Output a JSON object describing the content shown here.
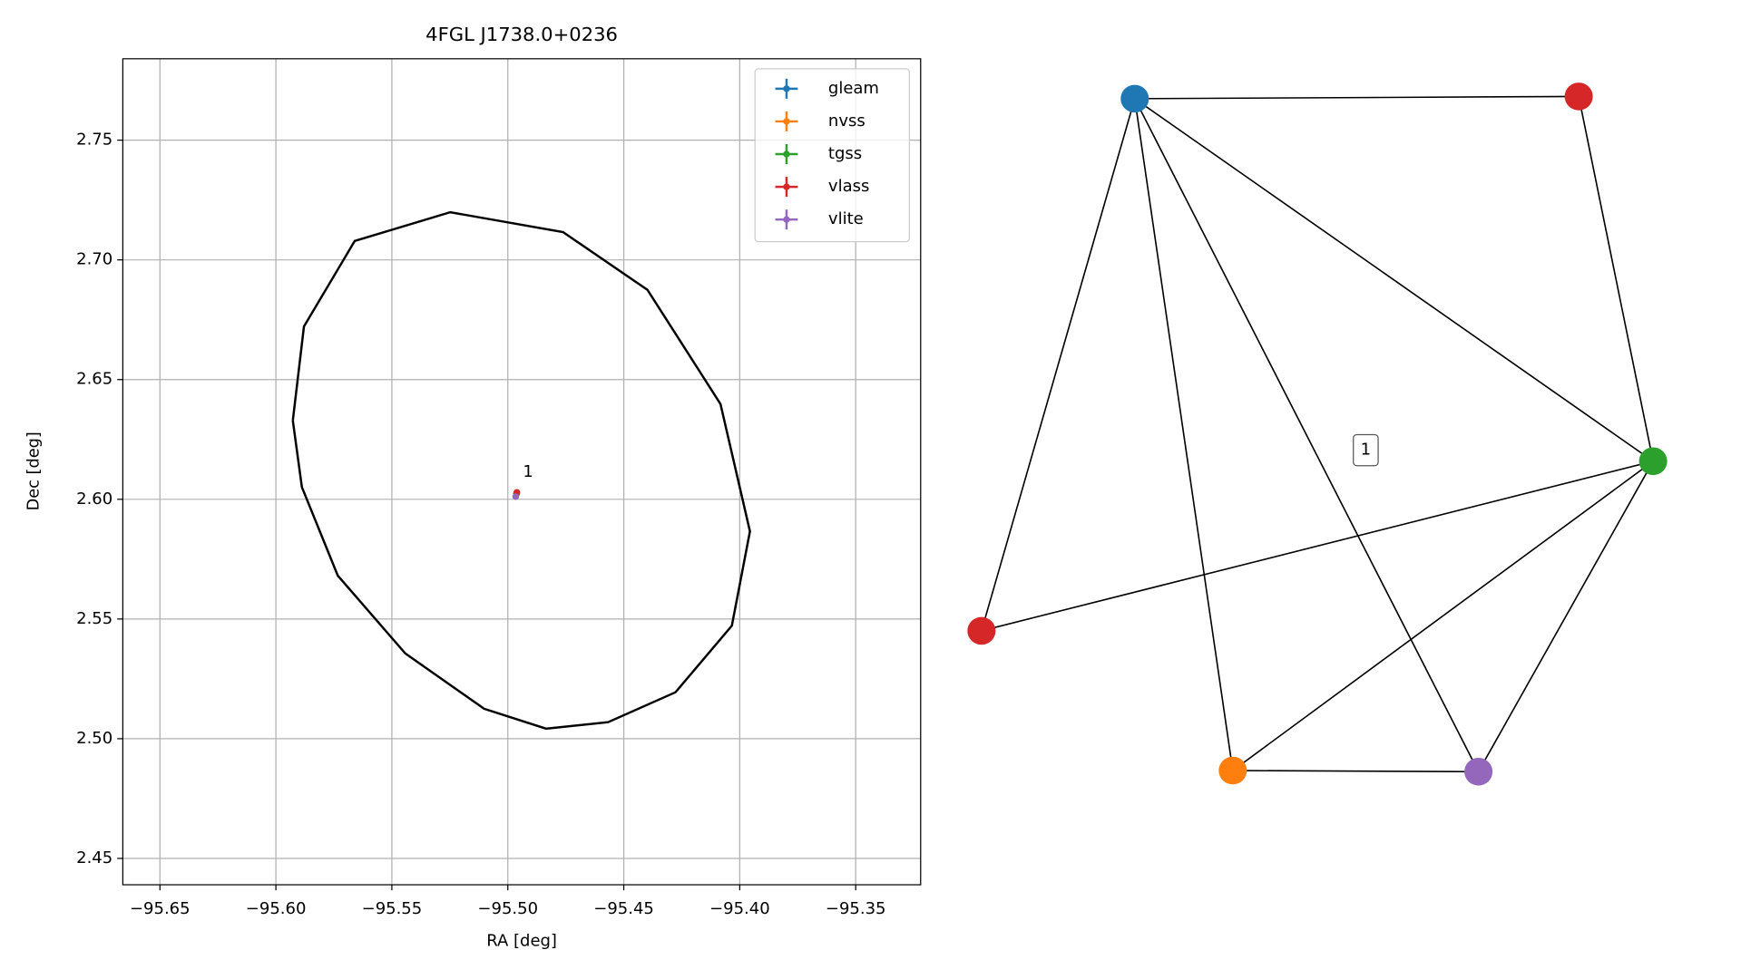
{
  "chart_data": [
    {
      "type": "scatter",
      "title": "4FGL J1738.0+0236",
      "xlabel": "RA [deg]",
      "ylabel": "Dec [deg]",
      "xlim": [
        -95.666,
        -95.322
      ],
      "ylim": [
        2.439,
        2.784
      ],
      "xticks": [
        {
          "value": -95.65,
          "label": "−95.65"
        },
        {
          "value": -95.6,
          "label": "−95.60"
        },
        {
          "value": -95.55,
          "label": "−95.55"
        },
        {
          "value": -95.5,
          "label": "−95.50"
        },
        {
          "value": -95.45,
          "label": "−95.45"
        },
        {
          "value": -95.4,
          "label": "−95.40"
        },
        {
          "value": -95.35,
          "label": "−95.35"
        }
      ],
      "yticks": [
        2.45,
        {
          "value": 2.5,
          "label": "2.50"
        },
        2.55,
        {
          "value": 2.6,
          "label": "2.60"
        },
        2.65,
        {
          "value": 2.7,
          "label": "2.70"
        },
        2.75
      ],
      "grid": true,
      "legend": "upper right",
      "series": [
        {
          "name": "gleam",
          "color": "#1f77b4",
          "x": [
            -95.4963
          ],
          "values": [
            2.6022
          ]
        },
        {
          "name": "nvss",
          "color": "#ff7f0e",
          "x": [
            -95.4963
          ],
          "values": [
            2.6022
          ]
        },
        {
          "name": "tgss",
          "color": "#2ca02c",
          "x": [
            -95.4963
          ],
          "values": [
            2.6022
          ]
        },
        {
          "name": "vlass",
          "color": "#d62728",
          "x": [
            -95.4961
          ],
          "values": [
            2.6029
          ]
        },
        {
          "name": "vlite",
          "color": "#9467bd",
          "x": [
            -95.4966
          ],
          "values": [
            2.6011
          ]
        }
      ],
      "ellipse": {
        "color": "#000000",
        "x": [
          -95.5927,
          -95.5879,
          -95.566,
          -95.5248,
          -95.4762,
          -95.4398,
          -95.4083,
          -95.3956,
          -95.4034,
          -95.4277,
          -95.4568,
          -95.4835,
          -95.5102,
          -95.5442,
          -95.5733,
          -95.5888,
          -95.5927
        ],
        "y": [
          2.6329,
          2.6722,
          2.7079,
          2.7199,
          2.7116,
          2.6875,
          2.6398,
          2.5866,
          2.5472,
          2.5194,
          2.5069,
          2.5042,
          2.5125,
          2.5356,
          2.5681,
          2.6051,
          2.6329
        ]
      },
      "annotations": [
        {
          "text": "1",
          "x": -95.4935,
          "y": 2.6075
        }
      ]
    },
    {
      "type": "graph",
      "label": "1",
      "nodes": [
        {
          "color": "#1f77b4"
        },
        {
          "color": "#d62728"
        },
        {
          "color": "#2ca02c"
        },
        {
          "color": "#d62728"
        },
        {
          "color": "#ff7f0e"
        },
        {
          "color": "#9467bd"
        }
      ],
      "edges": [
        [
          0,
          1
        ],
        [
          0,
          2
        ],
        [
          0,
          3
        ],
        [
          0,
          4
        ],
        [
          0,
          5
        ],
        [
          1,
          2
        ],
        [
          2,
          3
        ],
        [
          2,
          4
        ],
        [
          2,
          5
        ],
        [
          4,
          5
        ]
      ]
    }
  ]
}
